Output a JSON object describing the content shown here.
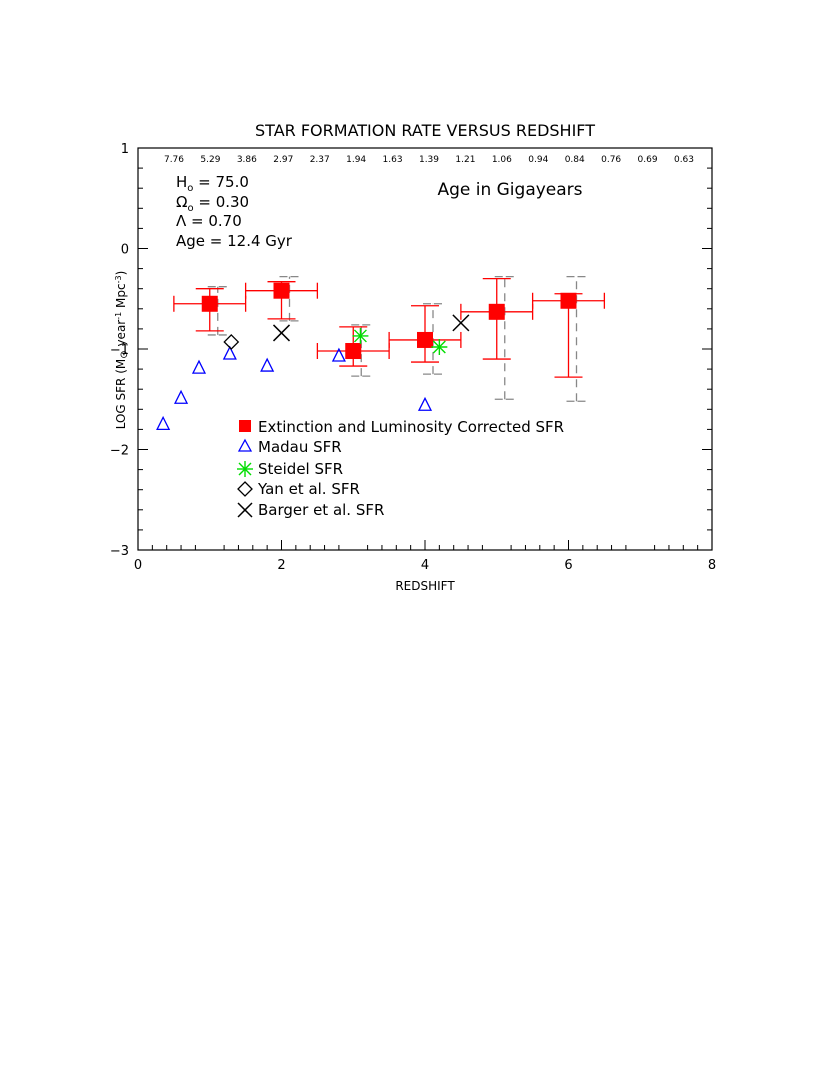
{
  "chart_data": {
    "type": "scatter",
    "title": "STAR FORMATION RATE VERSUS REDSHIFT",
    "xlabel": "REDSHIFT",
    "ylabel_parts": [
      "LOG SFR (M",
      "⊙",
      " year",
      "-1",
      " Mpc",
      "-3",
      ")"
    ],
    "xlim": [
      0,
      8
    ],
    "ylim": [
      -3,
      1
    ],
    "x_ticks": [
      "0",
      "2",
      "4",
      "6",
      "8"
    ],
    "y_ticks": [
      "1",
      "0",
      "−1",
      "−2",
      "−3"
    ],
    "age_ticks": [
      "7.76",
      "5.29",
      "3.86",
      "2.97",
      "2.37",
      "1.94",
      "1.63",
      "1.39",
      "1.21",
      "1.06",
      "0.94",
      "0.84",
      "0.76",
      "0.69",
      "0.63"
    ],
    "age_label": "Age in Gigayears",
    "cosmology": {
      "h0": "H",
      "h0_sub": "o",
      "h0_value": " = 75.0",
      "omega": "Ω",
      "omega_sub": "o",
      "omega_value": " = 0.30",
      "lambda": "Λ = 0.70",
      "age": "Age = 12.4 Gyr"
    },
    "series": [
      {
        "name": "Extinction and Luminosity Corrected SFR",
        "color": "#ff0000",
        "points": [
          {
            "x": 1,
            "y": -0.55,
            "xerr": [
              0.5,
              0.5
            ],
            "ylo": -0.82,
            "yhi": -0.4,
            "dlo": -0.86,
            "dhi": -0.38
          },
          {
            "x": 2,
            "y": -0.42,
            "xerr": [
              0.5,
              0.5
            ],
            "ylo": -0.7,
            "yhi": -0.33,
            "dlo": -0.72,
            "dhi": -0.28
          },
          {
            "x": 3,
            "y": -1.02,
            "xerr": [
              0.5,
              0.5
            ],
            "ylo": -1.17,
            "yhi": -0.78,
            "dlo": -1.27,
            "dhi": -0.76
          },
          {
            "x": 4,
            "y": -0.91,
            "xerr": [
              0.5,
              0.5
            ],
            "ylo": -1.13,
            "yhi": -0.57,
            "dlo": -1.25,
            "dhi": -0.55
          },
          {
            "x": 5,
            "y": -0.63,
            "xerr": [
              0.5,
              0.5
            ],
            "ylo": -1.1,
            "yhi": -0.3,
            "dlo": -1.5,
            "dhi": -0.28
          },
          {
            "x": 6,
            "y": -0.52,
            "xerr": [
              0.5,
              0.5
            ],
            "ylo": -1.28,
            "yhi": -0.45,
            "dlo": -1.52,
            "dhi": -0.28
          }
        ]
      },
      {
        "name": "Madau SFR",
        "color": "#0000ff",
        "points": [
          {
            "x": 0.35,
            "y": -1.75
          },
          {
            "x": 0.6,
            "y": -1.49
          },
          {
            "x": 0.85,
            "y": -1.19
          },
          {
            "x": 1.28,
            "y": -1.05
          },
          {
            "x": 1.8,
            "y": -1.17
          },
          {
            "x": 2.8,
            "y": -1.07
          },
          {
            "x": 4.0,
            "y": -1.56
          }
        ]
      },
      {
        "name": "Steidel SFR",
        "color": "#00dd00",
        "points": [
          {
            "x": 3.1,
            "y": -0.87
          },
          {
            "x": 4.2,
            "y": -0.98
          }
        ]
      },
      {
        "name": "Yan et al. SFR",
        "color": "#000000",
        "points": [
          {
            "x": 1.3,
            "y": -0.93
          }
        ]
      },
      {
        "name": "Barger et al. SFR",
        "color": "#000000",
        "points": [
          {
            "x": 2.0,
            "y": -0.84
          },
          {
            "x": 4.5,
            "y": -0.74
          }
        ]
      }
    ]
  }
}
